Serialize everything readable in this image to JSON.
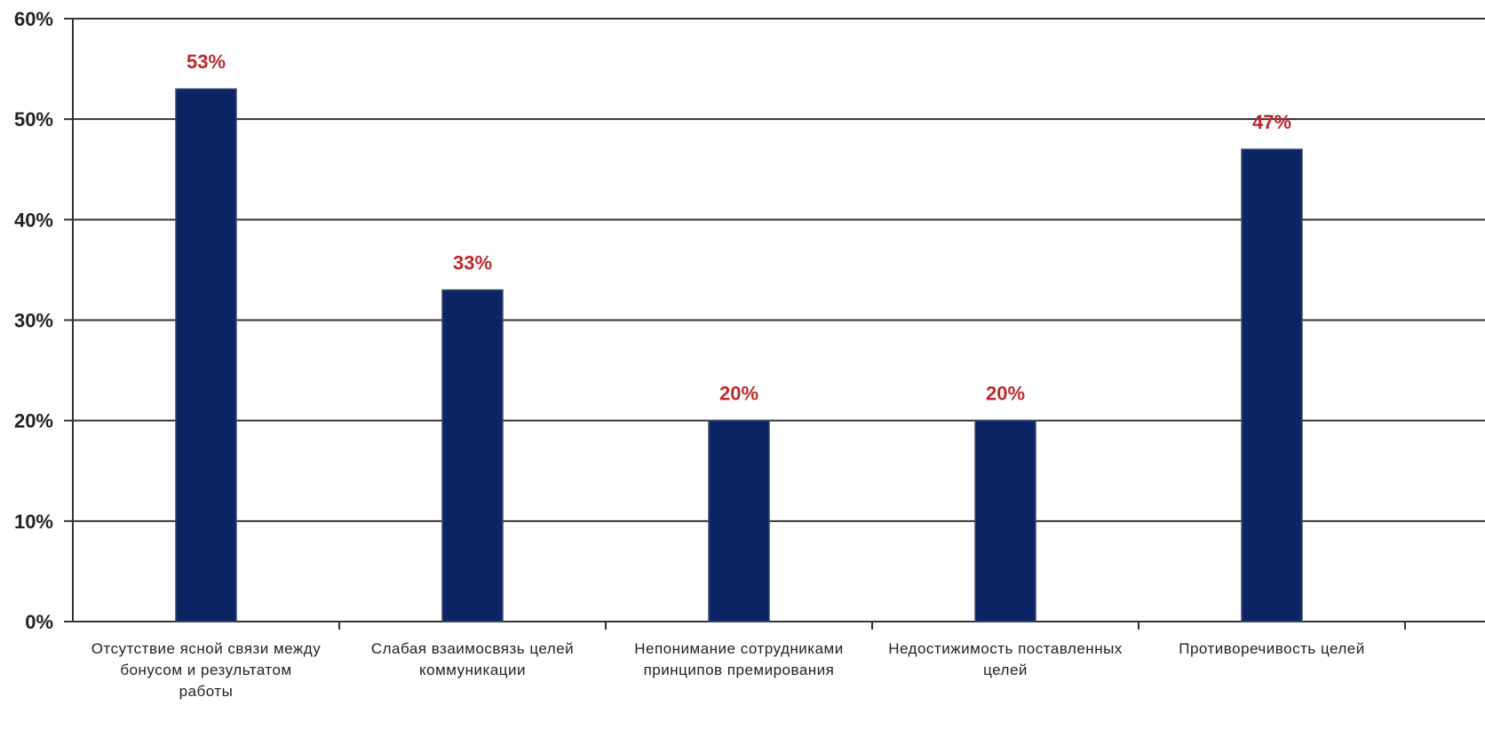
{
  "chart_data": {
    "type": "bar",
    "categories": [
      [
        "Отсутствие ясной связи между",
        "бонусом и результатом",
        "работы"
      ],
      [
        "Слабая взаимосвязь целей",
        "коммуникации"
      ],
      [
        "Непонимание сотрудниками",
        "принципов премирования"
      ],
      [
        "Недостижимость поставленных",
        "целей"
      ],
      [
        "Противоречивость целей"
      ]
    ],
    "values": [
      53,
      33,
      20,
      20,
      47
    ],
    "value_labels": [
      "53%",
      "33%",
      "20%",
      "20%",
      "47%"
    ],
    "ylim": [
      0,
      60
    ],
    "yticks": [
      0,
      10,
      20,
      30,
      40,
      50,
      60
    ],
    "ytick_labels": [
      "0%",
      "10%",
      "20%",
      "30%",
      "40%",
      "50%",
      "60%"
    ],
    "grid": true,
    "colors": {
      "bar": "#0b2463",
      "bar_edge": "#3a4a6a",
      "value_label": "#c0282d",
      "grid": "#333333"
    }
  }
}
